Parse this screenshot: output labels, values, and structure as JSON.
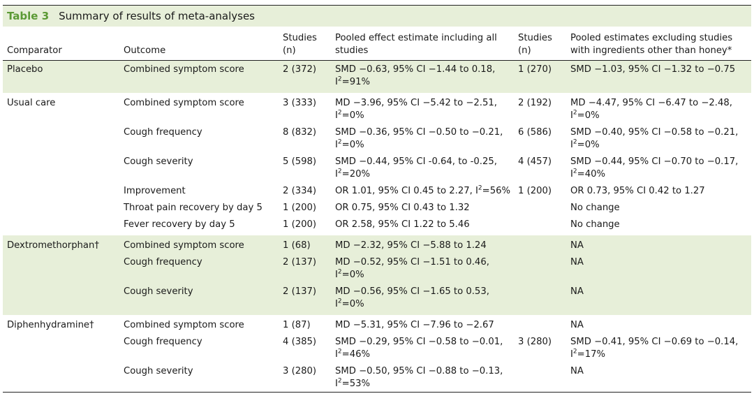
{
  "table": {
    "number": "Table 3",
    "title": "Summary of results of meta-analyses",
    "headers": {
      "comparator": "Comparator",
      "outcome": "Outcome",
      "studies_1": "Studies (n)",
      "pooled_all": "Pooled effect estimate including all studies",
      "studies_2": "Studies (n)",
      "pooled_excl": "Pooled estimates excluding studies with ingredients other than honey*"
    },
    "rows": [
      {
        "comparator": "Placebo",
        "outcome": "Combined symptom score",
        "studies": "2 (372)",
        "est": "SMD −0.63, 95% CI −1.44 to 0.18,",
        "est_i2": "91%",
        "studies2": "1 (270)",
        "excl": "SMD −1.03, 95% CI −1.32 to −0.75",
        "excl_i2": ""
      },
      {
        "comparator": "Usual care",
        "outcome": "Combined symptom score",
        "studies": "3 (333)",
        "est": "MD −3.96, 95% CI −5.42 to −2.51,",
        "est_i2": "0%",
        "studies2": "2 (192)",
        "excl": "MD −4.47, 95% CI −6.47 to −2.48,",
        "excl_i2": "0%"
      },
      {
        "comparator": "",
        "outcome": "Cough frequency",
        "studies": "8 (832)",
        "est": "SMD −0.36, 95% CI −0.50 to −0.21,",
        "est_i2": "0%",
        "studies2": "6 (586)",
        "excl": "SMD −0.40, 95% CI −0.58 to −0.21,",
        "excl_i2": "0%"
      },
      {
        "comparator": "",
        "outcome": "Cough severity",
        "studies": "5 (598)",
        "est": "SMD −0.44, 95% CI -0.64, to -0.25,",
        "est_i2": "20%",
        "studies2": "4 (457)",
        "excl": "SMD −0.44, 95% CI −0.70 to −0.17,",
        "excl_i2": "40%"
      },
      {
        "comparator": "",
        "outcome": "Improvement",
        "studies": "2 (334)",
        "est": "OR 1.01, 95% CI 0.45 to 2.27, ",
        "est_i2_inline": "56%",
        "studies2": "1 (200)",
        "excl": "OR 0.73, 95% CI 0.42 to 1.27",
        "excl_i2": ""
      },
      {
        "comparator": "",
        "outcome": "Throat pain recovery by day 5",
        "studies": "1 (200)",
        "est": "OR 0.75, 95% CI 0.43 to 1.32",
        "est_i2": "",
        "studies2": "",
        "excl": "No change",
        "excl_i2": ""
      },
      {
        "comparator": "",
        "outcome": "Fever recovery by day 5",
        "studies": "1 (200)",
        "est": "OR 2.58, 95% CI 1.22 to 5.46",
        "est_i2": "",
        "studies2": "",
        "excl": "No change",
        "excl_i2": ""
      },
      {
        "comparator": "Dextromethorphan†",
        "outcome": "Combined symptom score",
        "studies": "1 (68)",
        "est": "MD −2.32, 95% CI −5.88 to 1.24",
        "est_i2": "",
        "studies2": "",
        "excl": "NA",
        "excl_i2": ""
      },
      {
        "comparator": "",
        "outcome": "Cough frequency",
        "studies": "2 (137)",
        "est": "MD −0.52, 95% CI −1.51 to 0.46,",
        "est_i2": "0%",
        "studies2": "",
        "excl": "NA",
        "excl_i2": ""
      },
      {
        "comparator": "",
        "outcome": "Cough severity",
        "studies": "2 (137)",
        "est": "MD −0.56, 95% CI −1.65 to 0.53,",
        "est_i2": "0%",
        "studies2": "",
        "excl": "NA",
        "excl_i2": ""
      },
      {
        "comparator": "Diphenhydramine†",
        "outcome": "Combined symptom score",
        "studies": "1 (87)",
        "est": "MD −5.31, 95% CI −7.96 to −2.67",
        "est_i2": "",
        "studies2": "",
        "excl": "NA",
        "excl_i2": ""
      },
      {
        "comparator": "",
        "outcome": "Cough frequency",
        "studies": "4 (385)",
        "est": "SMD −0.29, 95% CI −0.58 to −0.01,",
        "est_i2": "46%",
        "studies2": "3 (280)",
        "excl": "SMD −0.41, 95% CI −0.69 to −0.14,",
        "excl_i2": "17%"
      },
      {
        "comparator": "",
        "outcome": "Cough severity",
        "studies": "3 (280)",
        "est": "SMD −0.50, 95% CI −0.88 to −0.13,",
        "est_i2": "53%",
        "studies2": "",
        "excl": "NA",
        "excl_i2": ""
      }
    ]
  },
  "i2_label": "I",
  "colors": {
    "shade": "#e7efd9",
    "accent": "#5b9a35"
  }
}
